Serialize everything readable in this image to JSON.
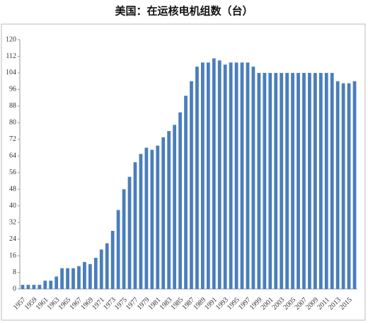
{
  "chart_data": {
    "type": "bar",
    "title": "美国：在运核电机组数（台）",
    "categories": [
      "1957",
      null,
      "1959",
      null,
      "1961",
      null,
      "1963",
      null,
      "1965",
      null,
      "1967",
      null,
      "1969",
      null,
      "1971",
      null,
      "1973",
      null,
      "1975",
      null,
      "1977",
      null,
      "1979",
      null,
      "1981",
      null,
      "1983",
      null,
      "1985",
      null,
      "1987",
      null,
      "1989",
      null,
      "1991",
      null,
      "1993",
      null,
      "1995",
      null,
      "1997",
      null,
      "1999",
      null,
      "2001",
      null,
      "2003",
      null,
      "2005",
      null,
      "2007",
      null,
      "2009",
      null,
      "2011",
      null,
      "2013",
      null,
      "2015",
      null
    ],
    "values": [
      2,
      2,
      2,
      2,
      4,
      4,
      6,
      10,
      10,
      10,
      11,
      13,
      12,
      15,
      19,
      22,
      28,
      38,
      48,
      54,
      61,
      65,
      68,
      67,
      69,
      73,
      76,
      79,
      85,
      93,
      100,
      107,
      109,
      109,
      111,
      110,
      108,
      109,
      109,
      109,
      109,
      107,
      104,
      104,
      104,
      104,
      104,
      104,
      104,
      104,
      104,
      104,
      104,
      104,
      104,
      104,
      100,
      99,
      99,
      100
    ],
    "color": "#4a7ebb",
    "ylim": [
      0,
      120
    ],
    "yticks": [
      0,
      8,
      16,
      24,
      32,
      40,
      48,
      56,
      64,
      72,
      80,
      88,
      96,
      104,
      112,
      120
    ],
    "grid": false
  }
}
